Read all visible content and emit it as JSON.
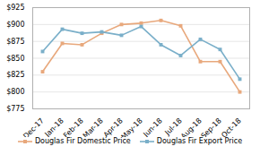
{
  "chart_data": {
    "type": "line",
    "categories": [
      "Dec-17",
      "Jan-18",
      "Feb-18",
      "Mar-18",
      "Apr-18",
      "May-18",
      "Jun-18",
      "Jul-18",
      "Aug-18",
      "Sep-18",
      "Oct-18"
    ],
    "series": [
      {
        "name": "Douglas Fir Domestic Price",
        "color": "#e8a87c",
        "marker": "square",
        "values": [
          830,
          872,
          870,
          887,
          900,
          902,
          906,
          898,
          845,
          845,
          800
        ]
      },
      {
        "name": "Douglas Fir Export Price",
        "color": "#7aafc9",
        "marker": "square",
        "values": [
          860,
          893,
          887,
          889,
          884,
          897,
          870,
          854,
          878,
          863,
          819
        ]
      }
    ],
    "ylim": [
      775,
      925
    ],
    "yticks": [
      {
        "value": 775,
        "label": "$775"
      },
      {
        "value": 800,
        "label": "$800"
      },
      {
        "value": 825,
        "label": "$825"
      },
      {
        "value": 850,
        "label": "$850"
      },
      {
        "value": 875,
        "label": "$875"
      },
      {
        "value": 900,
        "label": "$900"
      },
      {
        "value": 925,
        "label": "$925"
      }
    ],
    "grid": true,
    "legend": "bottom"
  }
}
